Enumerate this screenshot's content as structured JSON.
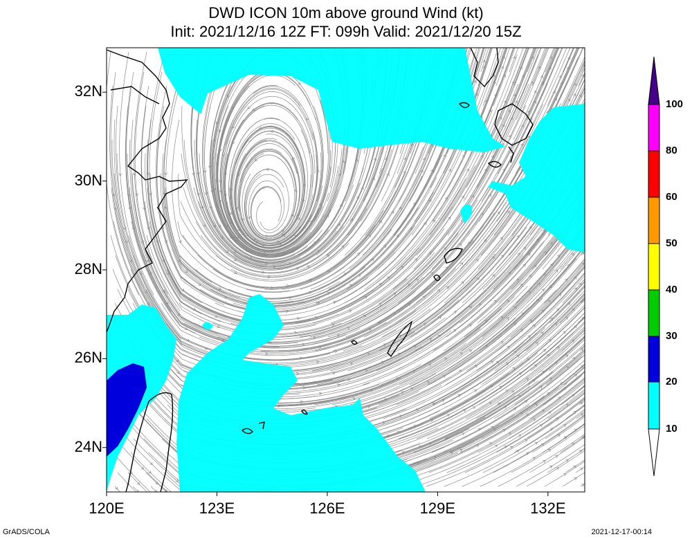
{
  "title": {
    "line1": "DWD ICON 10m above ground Wind (kt)",
    "line2": "Init: 2021/12/16 12Z  FT: 099h  Valid: 2021/12/20 15Z"
  },
  "map": {
    "lon_range": [
      120,
      133
    ],
    "lat_range": [
      23,
      33
    ],
    "lat_ticks": [
      {
        "value": 32,
        "label": "32N"
      },
      {
        "value": 30,
        "label": "30N"
      },
      {
        "value": 28,
        "label": "28N"
      },
      {
        "value": 26,
        "label": "26N"
      },
      {
        "value": 24,
        "label": "24N"
      }
    ],
    "lon_ticks": [
      {
        "value": 120,
        "label": "120E"
      },
      {
        "value": 123,
        "label": "123E"
      },
      {
        "value": 126,
        "label": "126E"
      },
      {
        "value": 129,
        "label": "129E"
      },
      {
        "value": 132,
        "label": "132E"
      }
    ],
    "fill_colors": {
      "10-20": "#00ffff",
      "20-30": "#0000dd",
      "coast": "#000000",
      "streamline": "#8a8a8a"
    }
  },
  "colorbar": {
    "levels": [
      "10",
      "20",
      "30",
      "40",
      "50",
      "60",
      "80",
      "100"
    ],
    "colors": [
      "#ffffff",
      "#00ffff",
      "#0000dd",
      "#00cc00",
      "#ffff00",
      "#ff9900",
      "#ff0000",
      "#ff00ff",
      "#440088"
    ]
  },
  "footer": {
    "left": "GrADS/COLA",
    "right": "2021-12-17-00:14"
  }
}
